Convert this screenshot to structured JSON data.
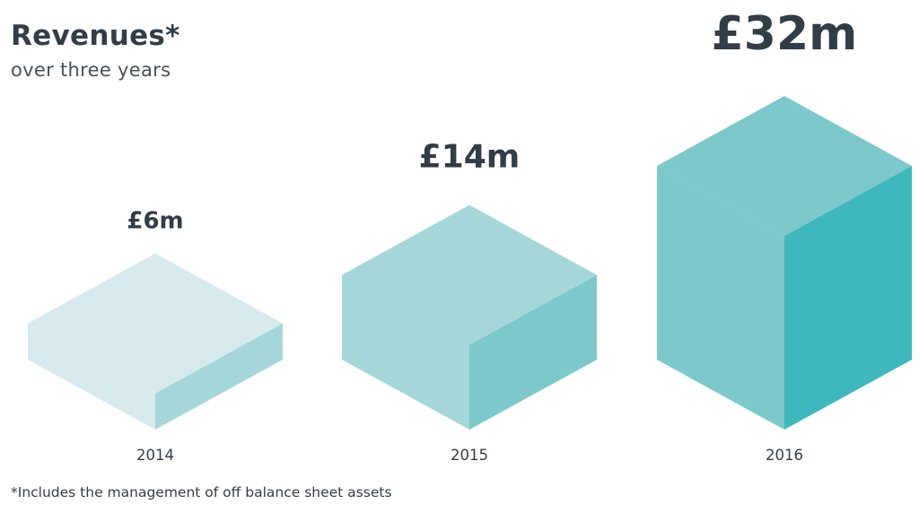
{
  "title": "Revenues*",
  "subtitle": "over three years",
  "footnote": "*Includes the management of off balance sheet assets",
  "chart_data": {
    "type": "bar",
    "categories": [
      "2014",
      "2015",
      "2016"
    ],
    "values": [
      6,
      14,
      32
    ],
    "value_labels": [
      "£6m",
      "£14m",
      "£32m"
    ],
    "unit": "£m",
    "colors": [
      {
        "top": "#d6eaed",
        "left": "#d6eaed",
        "right": "#a5d7da"
      },
      {
        "top": "#a5d7da",
        "left": "#a5d7da",
        "right": "#7cc8cb"
      },
      {
        "top": "#7cc8cb",
        "left": "#7cc8cb",
        "right": "#3fb8bd"
      }
    ],
    "grid": false,
    "legend": "none"
  }
}
